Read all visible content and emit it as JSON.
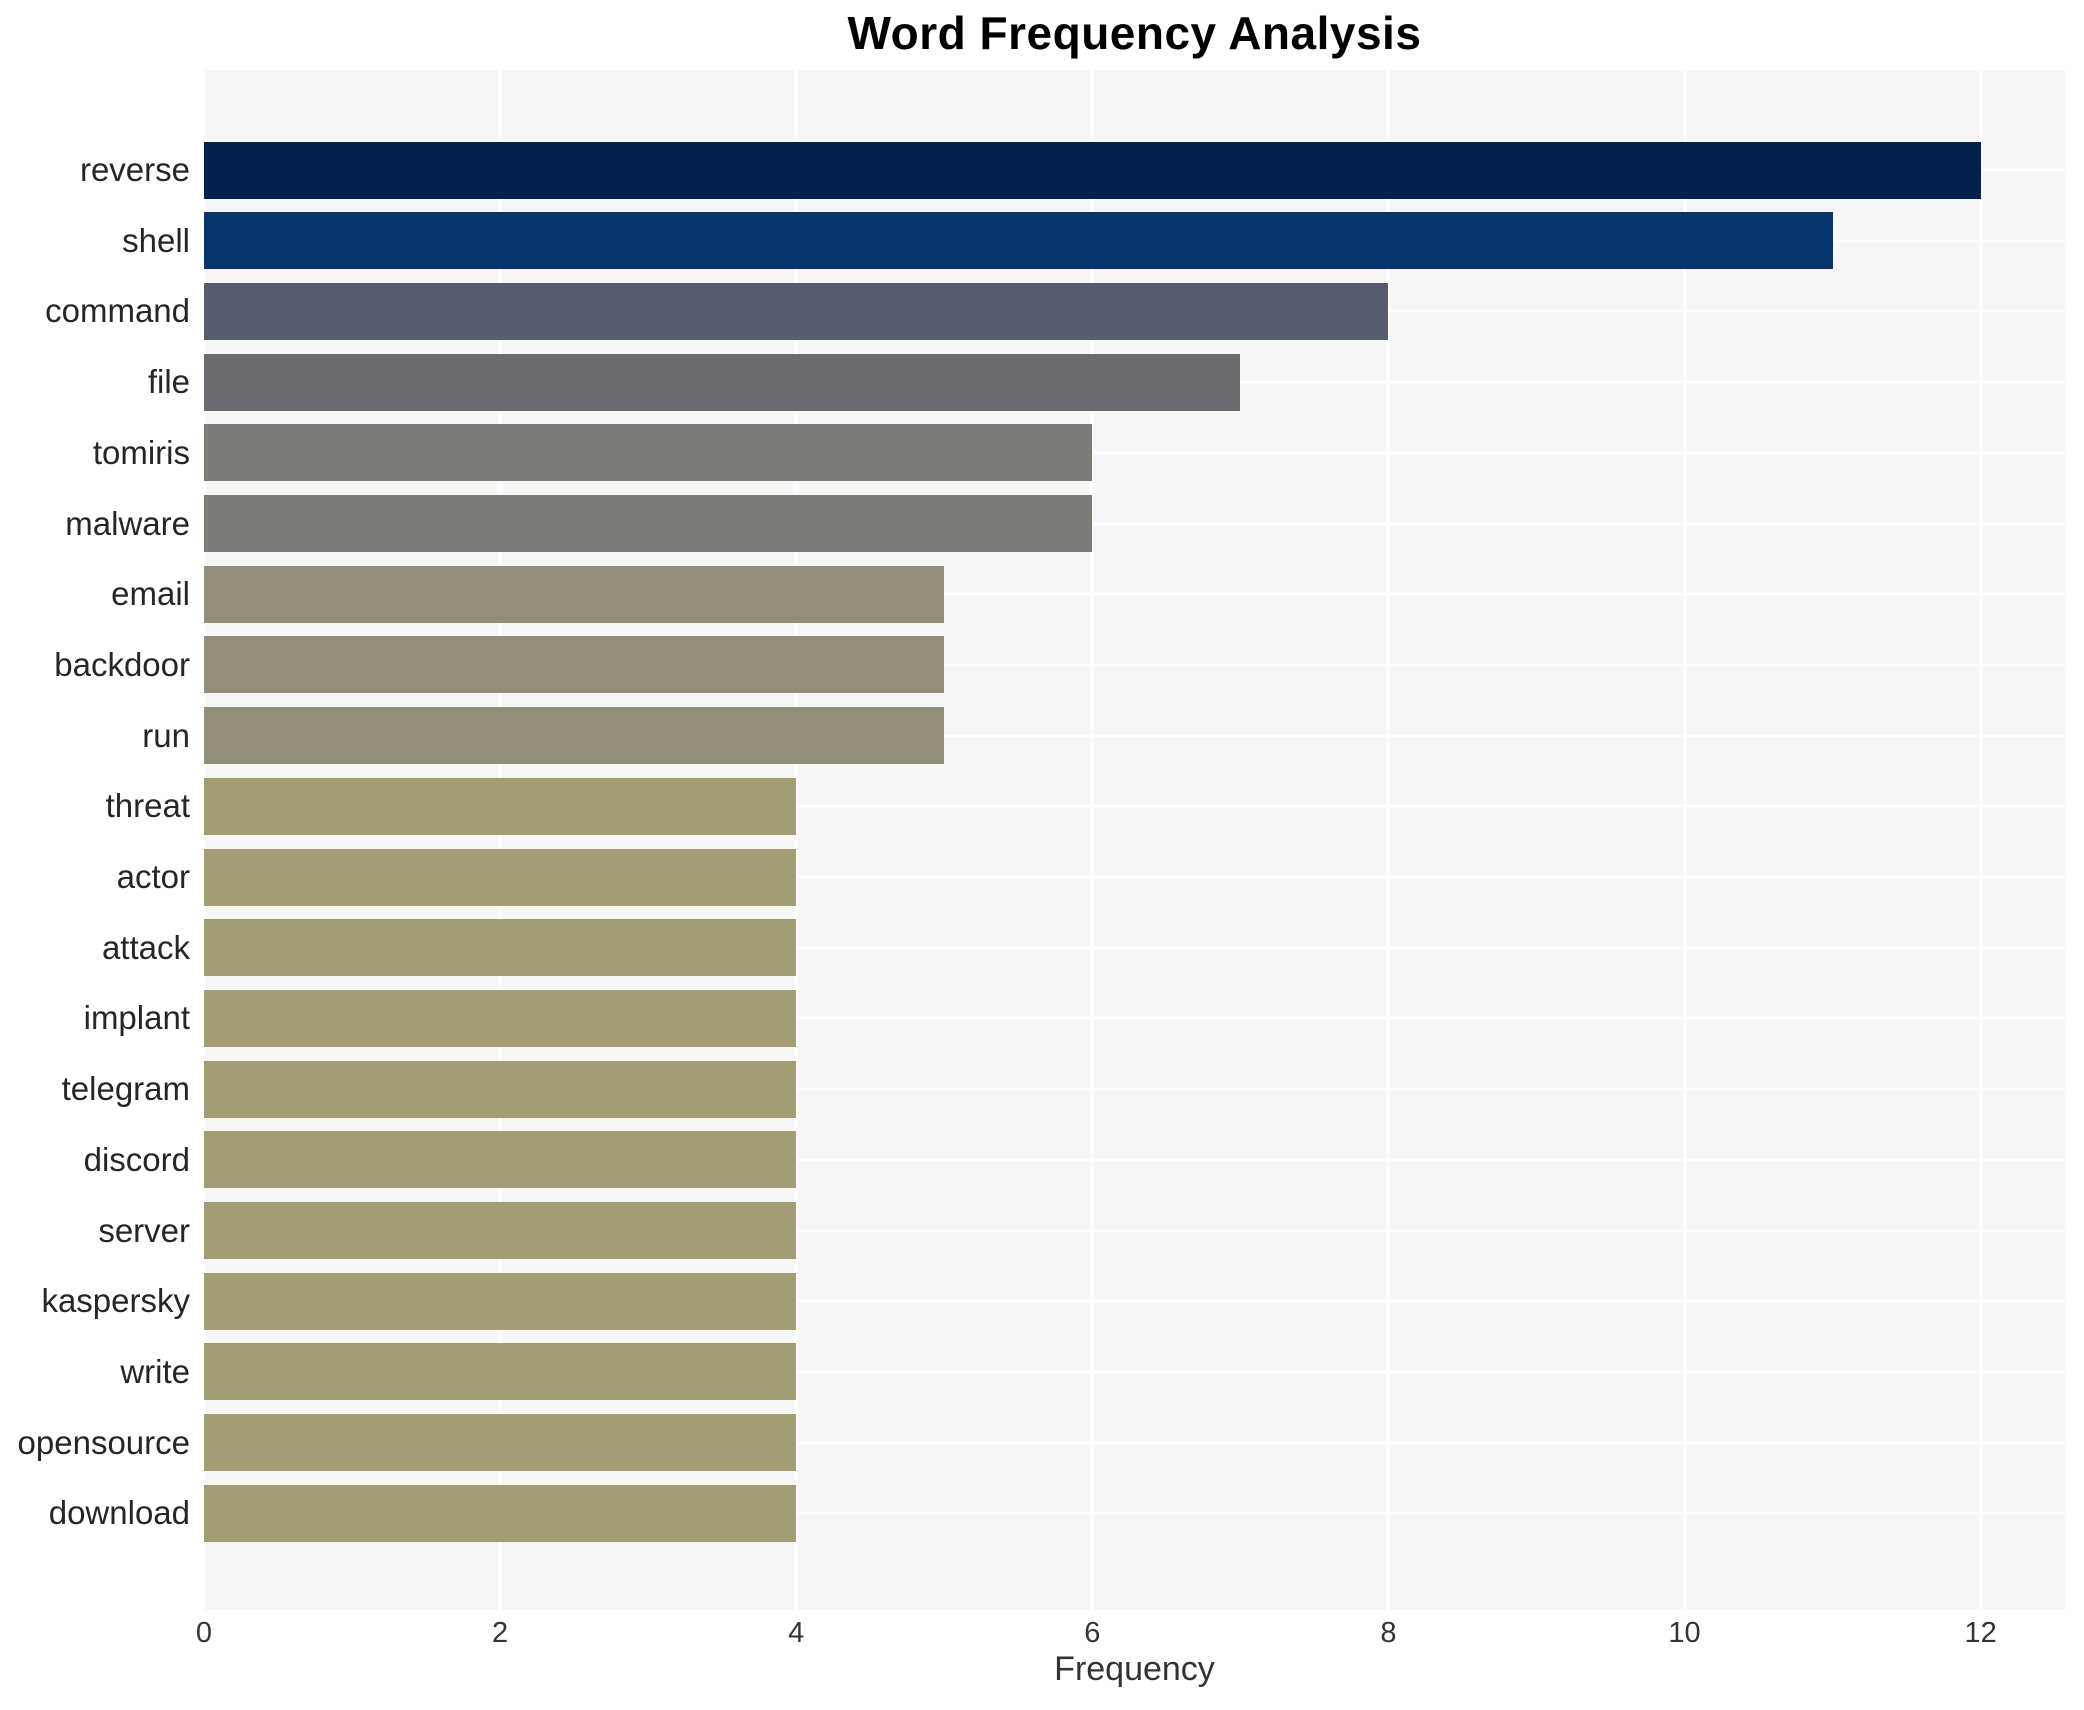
{
  "chart_data": {
    "type": "bar",
    "orientation": "horizontal",
    "title": "Word Frequency Analysis",
    "xlabel": "Frequency",
    "ylabel": "",
    "categories": [
      "reverse",
      "shell",
      "command",
      "file",
      "tomiris",
      "malware",
      "email",
      "backdoor",
      "run",
      "threat",
      "actor",
      "attack",
      "implant",
      "telegram",
      "discord",
      "server",
      "kaspersky",
      "write",
      "opensource",
      "download"
    ],
    "values": [
      12,
      11,
      8,
      7,
      6,
      6,
      5,
      5,
      5,
      4,
      4,
      4,
      4,
      4,
      4,
      4,
      4,
      4,
      4,
      4
    ],
    "bar_colors": [
      "#02224e",
      "#09356e",
      "#565d6e",
      "#6a6b70",
      "#7c7b75",
      "#7c7b75",
      "#938e7a",
      "#938e7a",
      "#938e7a",
      "#a49c72",
      "#a49c72",
      "#a49c72",
      "#a49c72",
      "#a49c72",
      "#a49c72",
      "#a49c72",
      "#a49c72",
      "#a49c72",
      "#a49c72",
      "#a49c72"
    ],
    "xticks": [
      0,
      2,
      4,
      6,
      8,
      10,
      12
    ],
    "xlim": [
      0,
      12.57
    ],
    "grid": true,
    "legend": "none",
    "plot_background": "#f6f6f4",
    "grid_color": "#ffffff",
    "text_color": "#262626"
  }
}
